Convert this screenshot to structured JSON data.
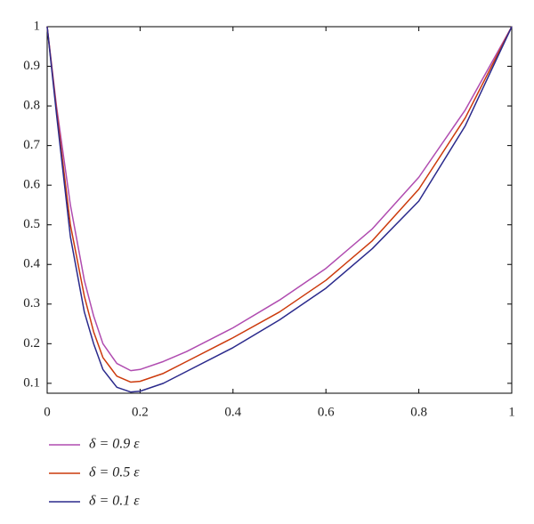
{
  "chart_data": {
    "type": "line",
    "x": [
      0,
      0.02,
      0.05,
      0.08,
      0.1,
      0.12,
      0.15,
      0.18,
      0.2,
      0.25,
      0.3,
      0.4,
      0.5,
      0.6,
      0.7,
      0.8,
      0.9,
      1
    ],
    "series": [
      {
        "name": "δ = 0.9 ε",
        "color": "#b04cb0",
        "values": [
          1,
          0.8,
          0.55,
          0.36,
          0.27,
          0.2,
          0.15,
          0.132,
          0.135,
          0.155,
          0.18,
          0.24,
          0.31,
          0.39,
          0.49,
          0.62,
          0.79,
          1
        ]
      },
      {
        "name": "δ = 0.5 ε",
        "color": "#cc3a0c",
        "values": [
          1,
          0.79,
          0.5,
          0.32,
          0.23,
          0.165,
          0.118,
          0.103,
          0.105,
          0.125,
          0.155,
          0.215,
          0.28,
          0.36,
          0.46,
          0.59,
          0.77,
          1
        ]
      },
      {
        "name": "δ = 0.1 ε",
        "color": "#2b2a8c",
        "values": [
          1,
          0.78,
          0.47,
          0.28,
          0.2,
          0.135,
          0.09,
          0.078,
          0.08,
          0.1,
          0.13,
          0.19,
          0.26,
          0.34,
          0.44,
          0.56,
          0.75,
          1
        ]
      }
    ],
    "xlim": [
      0,
      1
    ],
    "ylim": [
      0.075,
      1
    ],
    "xticks": [
      0,
      0.2,
      0.4,
      0.6,
      0.8,
      1
    ],
    "yticks": [
      0.1,
      0.2,
      0.3,
      0.4,
      0.5,
      0.6,
      0.7,
      0.8,
      0.9,
      1
    ]
  }
}
